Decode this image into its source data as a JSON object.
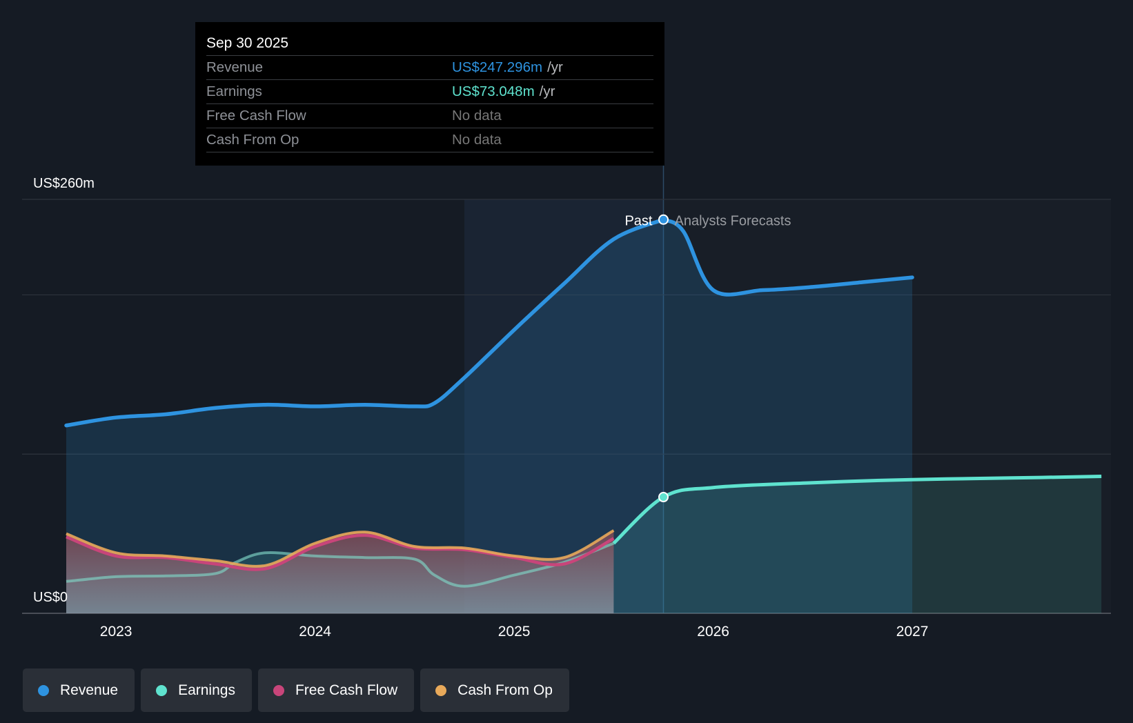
{
  "colors": {
    "background": "#151b24",
    "revenue": "#2e93e0",
    "earnings": "#5fe3cf",
    "free_cash_flow": "#c8457a",
    "cash_from_op": "#e8a95a"
  },
  "tooltip": {
    "date": "Sep 30 2025",
    "rows": [
      {
        "label": "Revenue",
        "value": "US$247.296m",
        "unit": "/yr",
        "color": "#2e93e0"
      },
      {
        "label": "Earnings",
        "value": "US$73.048m",
        "unit": "/yr",
        "color": "#5fe3cf"
      },
      {
        "label": "Free Cash Flow",
        "value": "No data",
        "unit": "",
        "color": "#777777"
      },
      {
        "label": "Cash From Op",
        "value": "No data",
        "unit": "",
        "color": "#777777"
      }
    ]
  },
  "legend": [
    {
      "label": "Revenue",
      "color": "#2e93e0"
    },
    {
      "label": "Earnings",
      "color": "#5fe3cf"
    },
    {
      "label": "Free Cash Flow",
      "color": "#c8457a"
    },
    {
      "label": "Cash From Op",
      "color": "#e8a95a"
    }
  ],
  "chart_data": {
    "type": "area",
    "title": "",
    "y_axis_labels": [
      "US$260m",
      "US$0"
    ],
    "ylim": [
      0,
      260
    ],
    "gridlines": [
      0,
      100,
      200,
      260
    ],
    "xlim": [
      2022.75,
      2027.95
    ],
    "x_ticks": [
      "2023",
      "2024",
      "2025",
      "2026",
      "2027"
    ],
    "divider": {
      "x": 2025.75,
      "past_label": "Past",
      "forecast_label": "Analysts Forecasts"
    },
    "highlight_band": [
      2024.75,
      2025.75
    ],
    "series": [
      {
        "name": "Revenue",
        "key": "revenue",
        "x": [
          2022.75,
          2023.0,
          2023.25,
          2023.5,
          2023.75,
          2024.0,
          2024.25,
          2024.5,
          2024.6,
          2024.75,
          2025.0,
          2025.25,
          2025.5,
          2025.75,
          2025.85,
          2026.0,
          2026.25,
          2026.5,
          2026.75,
          2027.0
        ],
        "values": [
          118,
          123,
          125,
          129,
          131,
          130,
          131,
          130,
          132,
          148,
          178,
          207,
          235,
          247.3,
          240,
          203,
          203,
          205,
          208,
          211
        ]
      },
      {
        "name": "Earnings",
        "key": "earnings",
        "x": [
          2022.75,
          2023.0,
          2023.25,
          2023.5,
          2023.6,
          2023.75,
          2024.0,
          2024.25,
          2024.5,
          2024.6,
          2024.75,
          2025.0,
          2025.25,
          2025.5,
          2025.75,
          2026.0,
          2026.5,
          2027.0,
          2027.5,
          2027.95
        ],
        "values": [
          20,
          23,
          23.5,
          25,
          32,
          38,
          36,
          35,
          34,
          24,
          17,
          24,
          32,
          44,
          73,
          79,
          82,
          84,
          85,
          86
        ]
      },
      {
        "name": "Free Cash Flow",
        "key": "free_cash_flow",
        "x": [
          2022.75,
          2023.0,
          2023.25,
          2023.5,
          2023.75,
          2024.0,
          2024.25,
          2024.5,
          2024.75,
          2025.0,
          2025.25,
          2025.5
        ],
        "values": [
          48,
          36,
          35,
          31,
          28,
          42,
          49,
          41,
          40,
          35,
          31,
          47
        ]
      },
      {
        "name": "Cash From Op",
        "key": "cash_from_op",
        "x": [
          2022.75,
          2023.0,
          2023.25,
          2023.5,
          2023.75,
          2024.0,
          2024.25,
          2024.5,
          2024.75,
          2025.0,
          2025.25,
          2025.5
        ],
        "values": [
          50,
          38,
          36,
          33,
          30,
          44,
          51,
          42,
          41,
          36,
          35,
          52
        ]
      }
    ],
    "markers": [
      {
        "series": "revenue",
        "x": 2025.75,
        "y": 247.3
      },
      {
        "series": "earnings",
        "x": 2025.75,
        "y": 73
      }
    ]
  }
}
